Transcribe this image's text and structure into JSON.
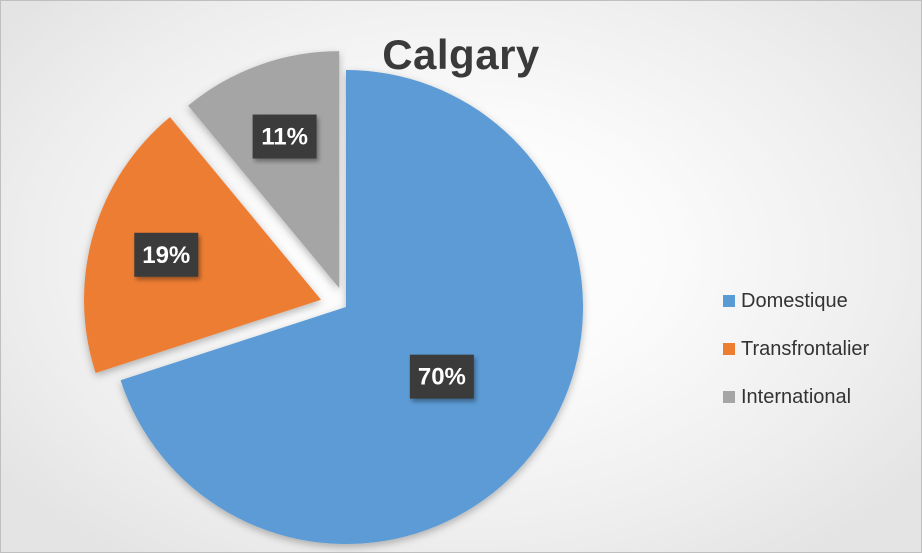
{
  "chart_data": {
    "type": "pie",
    "title": "Calgary",
    "categories": [
      "Domestique",
      "Transfrontalier",
      "International"
    ],
    "values": [
      70,
      19,
      11
    ],
    "labels": [
      "70%",
      "19%",
      "11%"
    ],
    "colors": [
      "#5b9bd5",
      "#ed7d31",
      "#a5a5a5"
    ],
    "exploded": true,
    "legend_position": "right",
    "data_label_style": "dark boxes with white text"
  }
}
